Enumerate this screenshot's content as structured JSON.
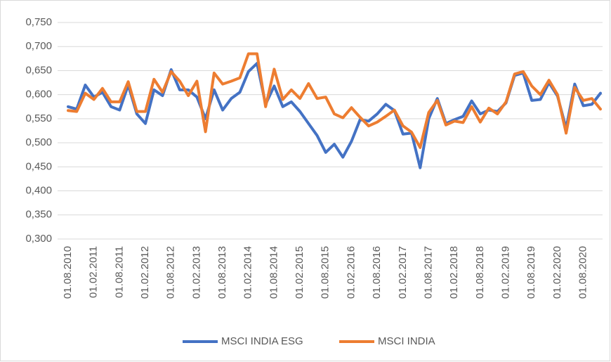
{
  "chart_data": {
    "type": "line",
    "categories": [
      "01.08.2010",
      null,
      null,
      "01.02.2011",
      null,
      null,
      "01.08.2011",
      null,
      null,
      "01.02.2012",
      null,
      null,
      "01.08.2012",
      null,
      null,
      "01.02.2013",
      null,
      null,
      "01.08.2013",
      null,
      null,
      "01.02.2014",
      null,
      null,
      "01.08.2014",
      null,
      null,
      "01.02.2015",
      null,
      null,
      "01.08.2015",
      null,
      null,
      "01.02.2016",
      null,
      null,
      "01.08.2016",
      null,
      null,
      "01.02.2017",
      null,
      null,
      "01.08.2017",
      null,
      null,
      "01.02.2018",
      null,
      null,
      "01.08.2018",
      null,
      null,
      "01.02.2019",
      null,
      null,
      "01.08.2019",
      null,
      null,
      "01.02.2020",
      null,
      null,
      "01.08.2020",
      null,
      null
    ],
    "series": [
      {
        "name": "MSCI INDIA ESG",
        "color": "#4472c4",
        "values": [
          0.575,
          0.57,
          0.62,
          0.595,
          0.605,
          0.575,
          0.568,
          0.62,
          0.56,
          0.54,
          0.61,
          0.598,
          0.652,
          0.61,
          0.61,
          0.595,
          0.55,
          0.61,
          0.568,
          0.592,
          0.605,
          0.648,
          0.665,
          0.58,
          0.618,
          0.575,
          0.585,
          0.565,
          0.54,
          0.515,
          0.48,
          0.497,
          0.47,
          0.503,
          0.548,
          0.545,
          0.56,
          0.58,
          0.567,
          0.518,
          0.52,
          0.448,
          0.55,
          0.592,
          0.54,
          0.548,
          0.555,
          0.587,
          0.56,
          0.568,
          0.565,
          0.583,
          0.64,
          0.645,
          0.588,
          0.59,
          0.625,
          0.597,
          0.53,
          0.622,
          0.577,
          0.58,
          0.603
        ]
      },
      {
        "name": "MSCI INDIA",
        "color": "#ed7d31",
        "values": [
          0.567,
          0.565,
          0.603,
          0.59,
          0.613,
          0.585,
          0.585,
          0.627,
          0.565,
          0.565,
          0.632,
          0.605,
          0.648,
          0.628,
          0.598,
          0.628,
          0.523,
          0.645,
          0.622,
          0.628,
          0.635,
          0.685,
          0.685,
          0.575,
          0.653,
          0.59,
          0.61,
          0.592,
          0.623,
          0.592,
          0.595,
          0.56,
          0.552,
          0.573,
          0.553,
          0.535,
          0.543,
          0.555,
          0.568,
          0.535,
          0.522,
          0.49,
          0.563,
          0.588,
          0.537,
          0.545,
          0.542,
          0.575,
          0.543,
          0.572,
          0.56,
          0.585,
          0.643,
          0.648,
          0.618,
          0.6,
          0.63,
          0.6,
          0.52,
          0.615,
          0.588,
          0.592,
          0.57
        ]
      }
    ],
    "ylim": [
      0.3,
      0.75
    ],
    "yticks": [
      {
        "value": 0.3,
        "label": "0,300"
      },
      {
        "value": 0.35,
        "label": "0,350"
      },
      {
        "value": 0.4,
        "label": "0,400"
      },
      {
        "value": 0.45,
        "label": "0,450"
      },
      {
        "value": 0.5,
        "label": "0,500"
      },
      {
        "value": 0.55,
        "label": "0,550"
      },
      {
        "value": 0.6,
        "label": "0,600"
      },
      {
        "value": 0.65,
        "label": "0,650"
      },
      {
        "value": 0.7,
        "label": "0,700"
      },
      {
        "value": 0.75,
        "label": "0,750"
      }
    ],
    "grid": true,
    "legend": "bottom"
  }
}
